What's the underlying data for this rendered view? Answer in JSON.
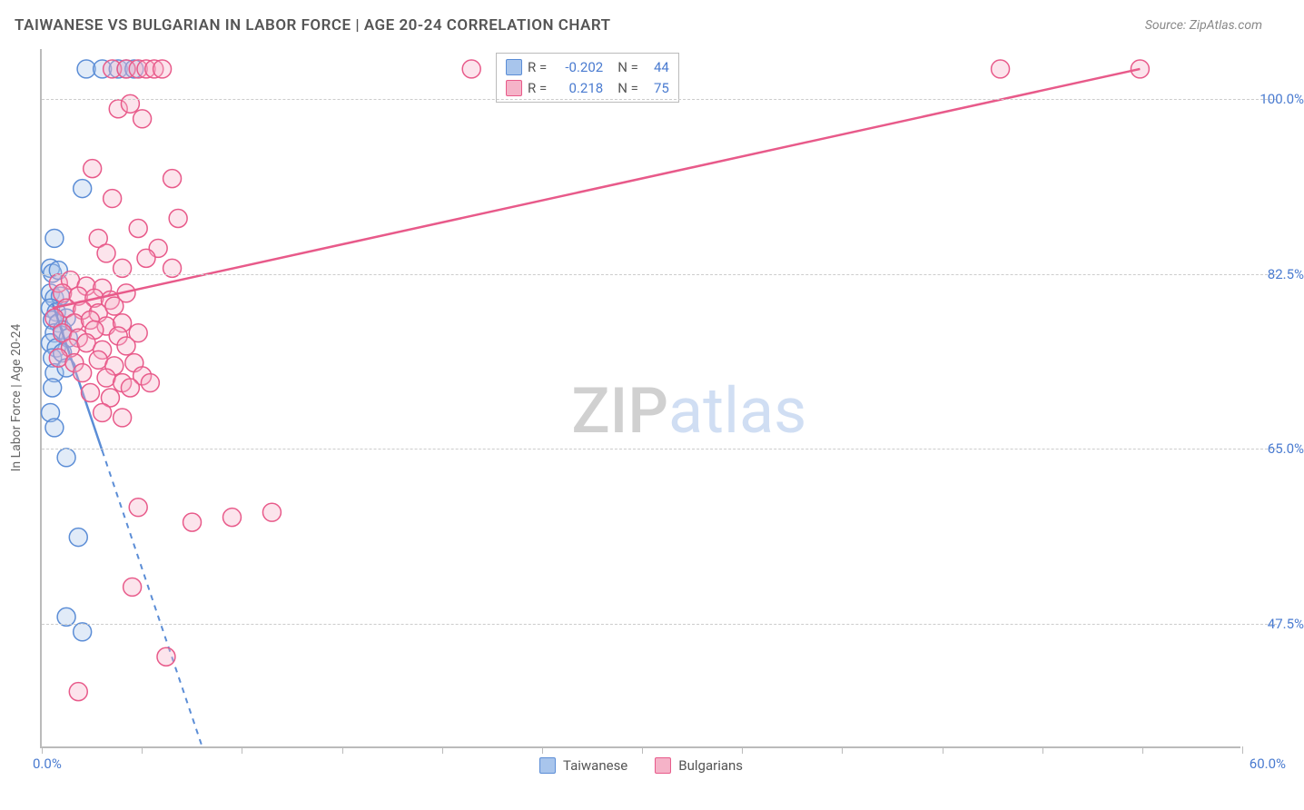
{
  "title": "TAIWANESE VS BULGARIAN IN LABOR FORCE | AGE 20-24 CORRELATION CHART",
  "source": "Source: ZipAtlas.com",
  "watermark": {
    "part1": "ZIP",
    "part2": "atlas"
  },
  "chart": {
    "type": "scatter",
    "background_color": "#ffffff",
    "grid_color": "#cccccc",
    "axis_color": "#bbbbbb",
    "tick_label_color": "#4a7bd0",
    "axis_title_color": "#666666",
    "xlim": [
      0,
      60
    ],
    "ylim": [
      35,
      105
    ],
    "x_ticks": [
      0,
      5,
      10,
      15,
      20,
      25,
      30,
      35,
      40,
      45,
      50,
      55,
      60
    ],
    "x_tick_labels": {
      "0": "0.0%",
      "60": "60.0%"
    },
    "y_gridlines": [
      47.5,
      65.0,
      82.5,
      100.0
    ],
    "y_tick_labels": [
      "47.5%",
      "65.0%",
      "82.5%",
      "100.0%"
    ],
    "y_axis_title": "In Labor Force | Age 20-24",
    "marker_radius": 10,
    "marker_fill_opacity": 0.35,
    "marker_stroke_width": 1.5,
    "regression_line_width": 2.5,
    "series": [
      {
        "name": "Taiwanese",
        "color": "#5b8dd6",
        "fill": "#a8c5ec",
        "r": -0.202,
        "n": 44,
        "regression": {
          "x1": 0.5,
          "y1": 79.5,
          "x2": 8.0,
          "y2": 35.0,
          "dashed_after_x": 3.0
        },
        "points": [
          [
            2.2,
            103
          ],
          [
            3.0,
            103
          ],
          [
            3.8,
            103
          ],
          [
            4.2,
            103
          ],
          [
            4.6,
            103
          ],
          [
            2.0,
            91
          ],
          [
            0.6,
            86
          ],
          [
            0.4,
            83
          ],
          [
            0.5,
            82.5
          ],
          [
            0.8,
            82.8
          ],
          [
            0.4,
            80.5
          ],
          [
            0.6,
            80.0
          ],
          [
            0.9,
            80.2
          ],
          [
            0.4,
            79.0
          ],
          [
            0.7,
            78.6
          ],
          [
            0.5,
            77.8
          ],
          [
            0.8,
            77.5
          ],
          [
            1.2,
            78.0
          ],
          [
            0.6,
            76.5
          ],
          [
            1.0,
            76.8
          ],
          [
            0.4,
            75.5
          ],
          [
            0.7,
            75.0
          ],
          [
            1.3,
            76.0
          ],
          [
            0.5,
            74.0
          ],
          [
            1.0,
            74.5
          ],
          [
            0.6,
            72.5
          ],
          [
            1.2,
            73.0
          ],
          [
            0.5,
            71.0
          ],
          [
            0.4,
            68.5
          ],
          [
            0.6,
            67.0
          ],
          [
            1.2,
            64.0
          ],
          [
            1.8,
            56.0
          ],
          [
            1.2,
            48.0
          ],
          [
            2.0,
            46.5
          ]
        ]
      },
      {
        "name": "Bulgarians",
        "color": "#e85a8a",
        "fill": "#f5b3c8",
        "r": 0.218,
        "n": 75,
        "regression": {
          "x1": 0.5,
          "y1": 79.0,
          "x2": 55.0,
          "y2": 103.0,
          "dashed_after_x": 100
        },
        "points": [
          [
            3.5,
            103
          ],
          [
            4.2,
            103
          ],
          [
            4.8,
            103
          ],
          [
            5.2,
            103
          ],
          [
            5.6,
            103
          ],
          [
            6.0,
            103
          ],
          [
            21.5,
            103
          ],
          [
            48.0,
            103
          ],
          [
            55.0,
            103
          ],
          [
            3.8,
            99
          ],
          [
            4.4,
            99.5
          ],
          [
            5.0,
            98
          ],
          [
            2.5,
            93
          ],
          [
            6.5,
            92
          ],
          [
            3.5,
            90
          ],
          [
            6.8,
            88
          ],
          [
            4.8,
            87
          ],
          [
            2.8,
            86
          ],
          [
            5.8,
            85
          ],
          [
            3.2,
            84.5
          ],
          [
            5.2,
            84
          ],
          [
            4.0,
            83
          ],
          [
            6.5,
            83
          ],
          [
            0.8,
            81.5
          ],
          [
            1.4,
            81.8
          ],
          [
            2.2,
            81.2
          ],
          [
            3.0,
            81.0
          ],
          [
            1.0,
            80.5
          ],
          [
            1.8,
            80.2
          ],
          [
            2.6,
            80.0
          ],
          [
            3.4,
            79.8
          ],
          [
            4.2,
            80.5
          ],
          [
            1.2,
            79.0
          ],
          [
            2.0,
            78.8
          ],
          [
            2.8,
            78.5
          ],
          [
            3.6,
            79.2
          ],
          [
            0.6,
            78.0
          ],
          [
            1.6,
            77.5
          ],
          [
            2.4,
            77.8
          ],
          [
            3.2,
            77.2
          ],
          [
            4.0,
            77.5
          ],
          [
            1.0,
            76.5
          ],
          [
            1.8,
            76.0
          ],
          [
            2.6,
            76.8
          ],
          [
            3.8,
            76.2
          ],
          [
            4.8,
            76.5
          ],
          [
            1.4,
            75.0
          ],
          [
            2.2,
            75.5
          ],
          [
            3.0,
            74.8
          ],
          [
            4.2,
            75.2
          ],
          [
            0.8,
            74.0
          ],
          [
            1.6,
            73.5
          ],
          [
            2.8,
            73.8
          ],
          [
            3.6,
            73.2
          ],
          [
            4.6,
            73.5
          ],
          [
            2.0,
            72.5
          ],
          [
            3.2,
            72.0
          ],
          [
            4.0,
            71.5
          ],
          [
            5.0,
            72.2
          ],
          [
            2.4,
            70.5
          ],
          [
            3.4,
            70.0
          ],
          [
            4.4,
            71.0
          ],
          [
            5.4,
            71.5
          ],
          [
            3.0,
            68.5
          ],
          [
            4.0,
            68.0
          ],
          [
            4.8,
            59.0
          ],
          [
            7.5,
            57.5
          ],
          [
            9.5,
            58.0
          ],
          [
            11.5,
            58.5
          ],
          [
            4.5,
            51.0
          ],
          [
            6.2,
            44.0
          ],
          [
            1.8,
            40.5
          ]
        ]
      }
    ],
    "legend_top_label_r": "R =",
    "legend_top_label_n": "N ="
  }
}
